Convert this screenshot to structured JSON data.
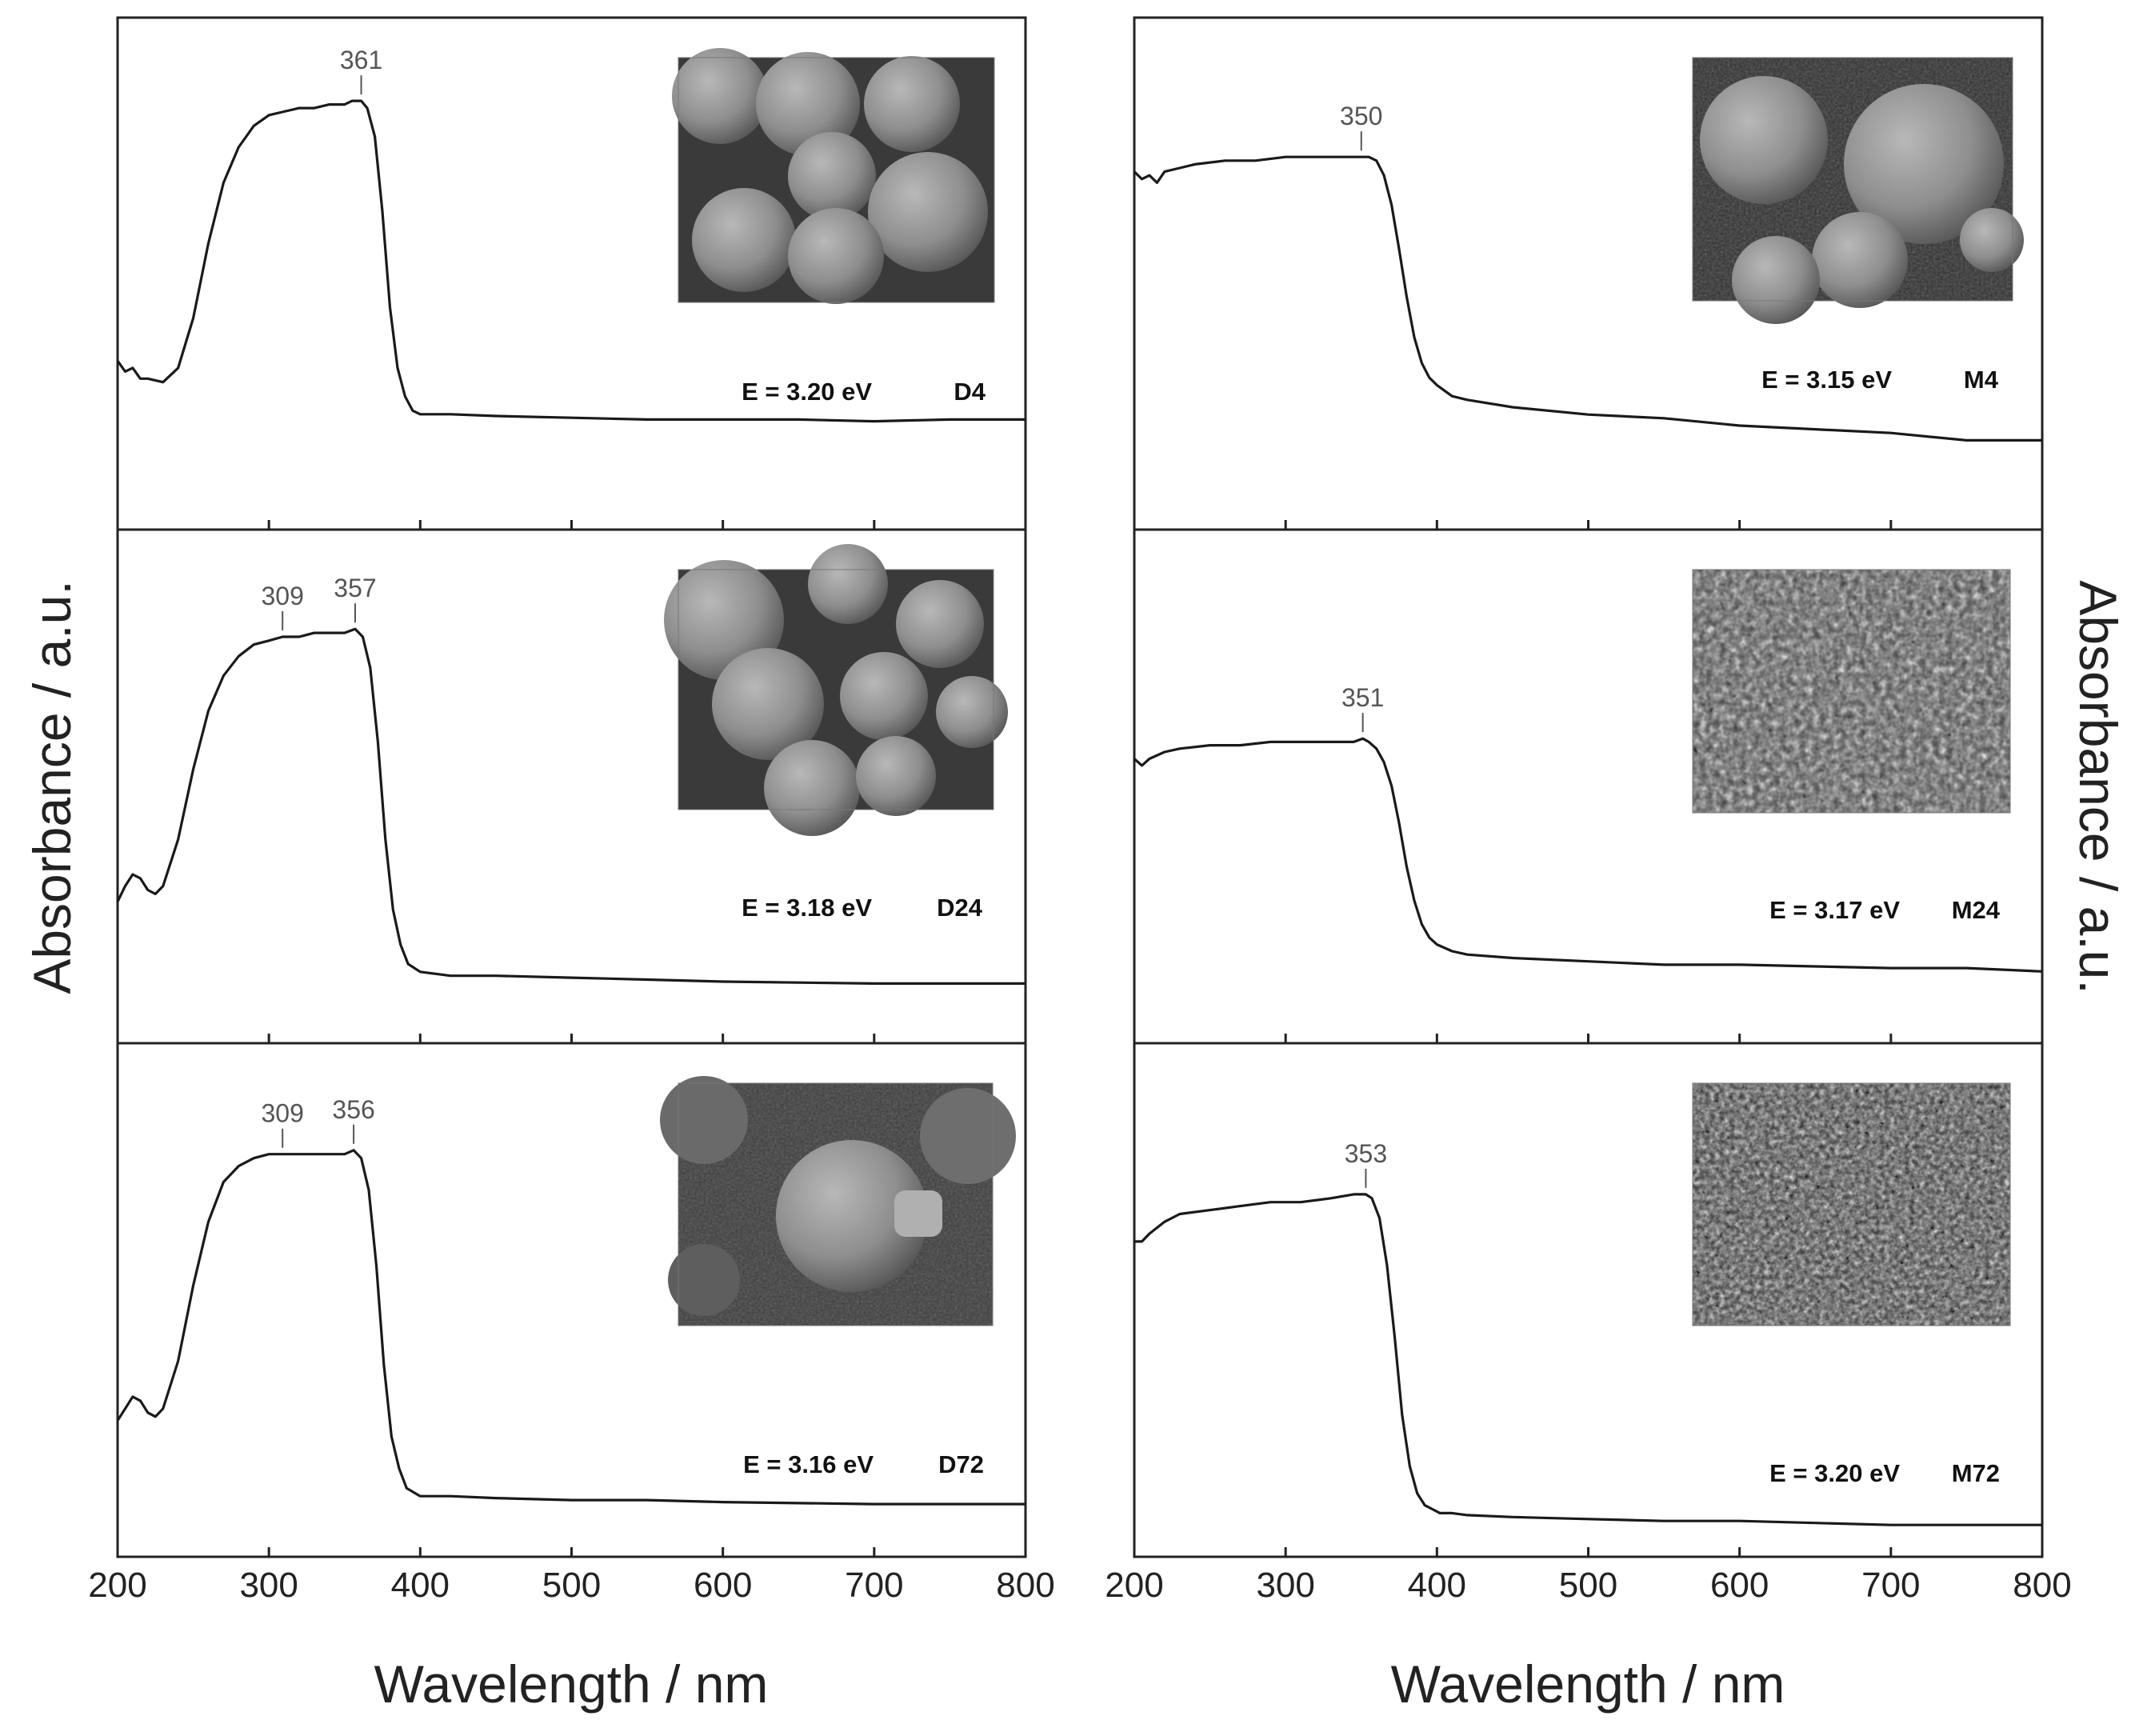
{
  "figure": {
    "left_xlabel": "Wavelength / nm",
    "right_xlabel": "Wavelength / nm",
    "left_ylabel": "Absorbance / a.u.",
    "right_ylabel": "Absorbance / a.u."
  },
  "chart_data": [
    {
      "type": "line",
      "sample": "D4",
      "energy_label": "E = 3.20 eV",
      "x": [
        200,
        205,
        210,
        215,
        220,
        230,
        240,
        250,
        260,
        270,
        280,
        290,
        300,
        310,
        320,
        330,
        340,
        350,
        355,
        361,
        365,
        370,
        375,
        380,
        385,
        390,
        395,
        400,
        420,
        450,
        500,
        550,
        600,
        650,
        700,
        750,
        800
      ],
      "y": [
        0.2,
        0.17,
        0.18,
        0.15,
        0.15,
        0.14,
        0.18,
        0.32,
        0.53,
        0.7,
        0.8,
        0.86,
        0.89,
        0.9,
        0.91,
        0.91,
        0.92,
        0.92,
        0.93,
        0.93,
        0.91,
        0.83,
        0.62,
        0.35,
        0.18,
        0.1,
        0.06,
        0.05,
        0.05,
        0.045,
        0.04,
        0.035,
        0.035,
        0.035,
        0.03,
        0.035,
        0.035
      ],
      "peaks": [
        {
          "x": 361,
          "label": "361"
        }
      ],
      "xlim": [
        200,
        800
      ],
      "ylim": [
        0,
        1
      ],
      "xticks": [
        "200",
        "300",
        "400",
        "500",
        "600",
        "700",
        "800"
      ],
      "show_xticks": false
    },
    {
      "type": "line",
      "sample": "M4",
      "energy_label": "E = 3.15 eV",
      "x": [
        200,
        205,
        210,
        215,
        220,
        230,
        240,
        260,
        280,
        300,
        320,
        340,
        350,
        355,
        360,
        365,
        370,
        375,
        380,
        385,
        390,
        395,
        400,
        410,
        420,
        450,
        500,
        550,
        600,
        650,
        700,
        750,
        800
      ],
      "y": [
        0.74,
        0.72,
        0.73,
        0.71,
        0.74,
        0.75,
        0.76,
        0.77,
        0.77,
        0.78,
        0.78,
        0.78,
        0.78,
        0.78,
        0.77,
        0.73,
        0.65,
        0.53,
        0.4,
        0.29,
        0.22,
        0.18,
        0.16,
        0.13,
        0.12,
        0.1,
        0.08,
        0.07,
        0.05,
        0.04,
        0.03,
        0.01,
        0.01
      ],
      "peaks": [
        {
          "x": 350,
          "label": "350"
        }
      ],
      "xlim": [
        200,
        800
      ],
      "ylim": [
        0,
        1
      ],
      "xticks": [
        "200",
        "300",
        "400",
        "500",
        "600",
        "700",
        "800"
      ],
      "show_xticks": false
    },
    {
      "type": "line",
      "sample": "D24",
      "energy_label": "E = 3.18 eV",
      "x": [
        200,
        205,
        210,
        215,
        220,
        225,
        230,
        240,
        250,
        260,
        270,
        280,
        290,
        300,
        309,
        320,
        330,
        340,
        350,
        357,
        362,
        367,
        372,
        377,
        382,
        387,
        392,
        400,
        420,
        450,
        500,
        550,
        600,
        700,
        800
      ],
      "y": [
        0.24,
        0.28,
        0.31,
        0.3,
        0.27,
        0.26,
        0.28,
        0.4,
        0.58,
        0.73,
        0.82,
        0.87,
        0.9,
        0.91,
        0.92,
        0.92,
        0.93,
        0.93,
        0.93,
        0.94,
        0.92,
        0.84,
        0.65,
        0.4,
        0.22,
        0.13,
        0.08,
        0.06,
        0.05,
        0.05,
        0.045,
        0.04,
        0.035,
        0.03,
        0.03
      ],
      "peaks": [
        {
          "x": 309,
          "label": "309"
        },
        {
          "x": 357,
          "label": "357"
        }
      ],
      "xlim": [
        200,
        800
      ],
      "ylim": [
        0,
        1
      ],
      "xticks": [
        "200",
        "300",
        "400",
        "500",
        "600",
        "700",
        "800"
      ],
      "show_xticks": false
    },
    {
      "type": "line",
      "sample": "M24",
      "energy_label": "E = 3.17 eV",
      "x": [
        200,
        205,
        210,
        220,
        230,
        250,
        270,
        290,
        310,
        330,
        345,
        351,
        355,
        360,
        365,
        370,
        375,
        380,
        385,
        390,
        395,
        400,
        410,
        420,
        450,
        500,
        550,
        600,
        650,
        700,
        750,
        800
      ],
      "y": [
        0.66,
        0.64,
        0.66,
        0.68,
        0.69,
        0.7,
        0.7,
        0.71,
        0.71,
        0.71,
        0.71,
        0.72,
        0.71,
        0.69,
        0.65,
        0.58,
        0.47,
        0.34,
        0.24,
        0.17,
        0.13,
        0.11,
        0.09,
        0.08,
        0.07,
        0.06,
        0.05,
        0.05,
        0.045,
        0.04,
        0.04,
        0.03
      ],
      "peaks": [
        {
          "x": 351,
          "label": "351"
        }
      ],
      "xlim": [
        200,
        800
      ],
      "ylim": [
        0,
        1
      ],
      "xticks": [
        "200",
        "300",
        "400",
        "500",
        "600",
        "700",
        "800"
      ],
      "show_xticks": false
    },
    {
      "type": "line",
      "sample": "D72",
      "energy_label": "E = 3.16 eV",
      "x": [
        200,
        205,
        210,
        215,
        220,
        225,
        230,
        240,
        250,
        260,
        270,
        280,
        290,
        300,
        309,
        320,
        330,
        340,
        350,
        356,
        361,
        366,
        371,
        376,
        381,
        386,
        391,
        400,
        420,
        450,
        500,
        550,
        600,
        700,
        800
      ],
      "y": [
        0.24,
        0.27,
        0.3,
        0.29,
        0.26,
        0.25,
        0.27,
        0.39,
        0.58,
        0.74,
        0.84,
        0.88,
        0.9,
        0.91,
        0.91,
        0.91,
        0.91,
        0.91,
        0.91,
        0.92,
        0.9,
        0.82,
        0.63,
        0.38,
        0.2,
        0.12,
        0.07,
        0.05,
        0.05,
        0.045,
        0.04,
        0.04,
        0.035,
        0.03,
        0.03
      ],
      "peaks": [
        {
          "x": 309,
          "label": "309"
        },
        {
          "x": 356,
          "label": "356"
        }
      ],
      "xlim": [
        200,
        800
      ],
      "ylim": [
        0,
        1
      ],
      "xticks": [
        "200",
        "300",
        "400",
        "500",
        "600",
        "700",
        "800"
      ],
      "show_xticks": true
    },
    {
      "type": "line",
      "sample": "M72",
      "energy_label": "E = 3.20 eV",
      "x": [
        200,
        205,
        210,
        220,
        230,
        250,
        270,
        290,
        310,
        330,
        345,
        353,
        357,
        362,
        367,
        372,
        377,
        382,
        387,
        392,
        397,
        402,
        410,
        420,
        450,
        500,
        550,
        600,
        650,
        700,
        750,
        800
      ],
      "y": [
        0.74,
        0.74,
        0.76,
        0.79,
        0.81,
        0.82,
        0.83,
        0.84,
        0.84,
        0.85,
        0.86,
        0.86,
        0.85,
        0.8,
        0.68,
        0.5,
        0.3,
        0.17,
        0.1,
        0.07,
        0.06,
        0.05,
        0.05,
        0.045,
        0.04,
        0.035,
        0.03,
        0.03,
        0.025,
        0.02,
        0.02,
        0.02
      ],
      "peaks": [
        {
          "x": 353,
          "label": "353"
        }
      ],
      "xlim": [
        200,
        800
      ],
      "ylim": [
        0,
        1
      ],
      "xticks": [
        "200",
        "300",
        "400",
        "500",
        "600",
        "700",
        "800"
      ],
      "show_xticks": true
    }
  ],
  "insets": [
    {
      "panel": "D4",
      "name": "sem-inset-d4",
      "kind": "large-spheres"
    },
    {
      "panel": "M4",
      "name": "sem-inset-m4",
      "kind": "large-spheres-rough"
    },
    {
      "panel": "D24",
      "name": "sem-inset-d24",
      "kind": "large-spheres"
    },
    {
      "panel": "M24",
      "name": "sem-inset-m24",
      "kind": "fine-grain"
    },
    {
      "panel": "D72",
      "name": "sem-inset-d72",
      "kind": "single-sphere"
    },
    {
      "panel": "M72",
      "name": "sem-inset-m72",
      "kind": "fine-grain"
    }
  ],
  "colors": {
    "line": "#1a1a1a",
    "frame": "#222222",
    "background": "#ffffff"
  }
}
